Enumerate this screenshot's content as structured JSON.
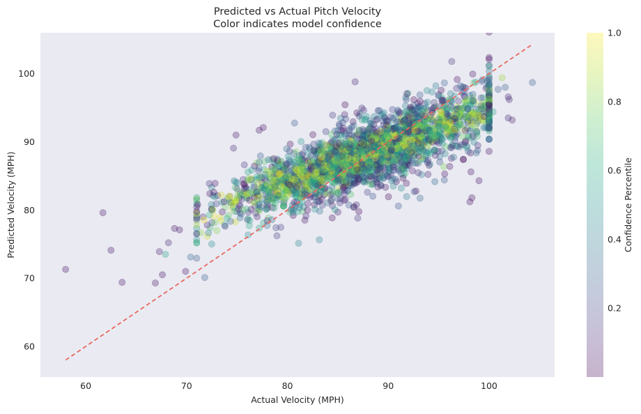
{
  "chart_data": {
    "type": "scatter",
    "title_line1": "Predicted vs Actual Pitch Velocity",
    "title_line2": "Color indicates model confidence",
    "xlabel": "Actual Velocity (MPH)",
    "ylabel": "Predicted Velocity (MPH)",
    "xlim": [
      55.5,
      106.5
    ],
    "ylim": [
      55.5,
      106.0
    ],
    "xticks": [
      60,
      70,
      80,
      90,
      100
    ],
    "yticks": [
      60,
      70,
      80,
      90,
      100
    ],
    "grid": false,
    "background": "#eaeaf2",
    "reference_line": {
      "style": "dashed",
      "color": "#e8685e",
      "x": [
        58.0,
        104.3
      ],
      "y": [
        58.0,
        104.3
      ]
    },
    "colorbar": {
      "label": "Confidence Percentile",
      "range": [
        0,
        1
      ],
      "ticks": [
        0.2,
        0.4,
        0.6,
        0.8,
        1.0
      ],
      "tick_labels": [
        "0.2",
        "0.4",
        "0.6",
        "0.8",
        "1.0"
      ],
      "colormap": "viridis",
      "alpha": 0.3
    },
    "point_alpha": 0.3,
    "point_cloud": {
      "count": 2600,
      "x_mean": 88,
      "x_sd": 6.8,
      "x_range": [
        58,
        104.3
      ],
      "slope": 0.55,
      "intercept_at_x": 88,
      "intercept_value": 88.3,
      "residual_sd_low_confidence": 3.6,
      "residual_sd_high_confidence": 1.2
    },
    "outliers": [
      {
        "x": 58.0,
        "y": 71.3,
        "c": 0.05
      },
      {
        "x": 61.7,
        "y": 79.6,
        "c": 0.05
      },
      {
        "x": 62.5,
        "y": 74.1,
        "c": 0.05
      },
      {
        "x": 63.6,
        "y": 69.4,
        "c": 0.05
      },
      {
        "x": 66.9,
        "y": 69.3,
        "c": 0.05
      },
      {
        "x": 67.3,
        "y": 73.9,
        "c": 0.08
      },
      {
        "x": 67.6,
        "y": 70.5,
        "c": 0.05
      },
      {
        "x": 67.9,
        "y": 73.5,
        "c": 0.55
      },
      {
        "x": 68.2,
        "y": 75.2,
        "c": 0.1
      },
      {
        "x": 68.8,
        "y": 77.3,
        "c": 0.05
      },
      {
        "x": 69.3,
        "y": 77.1,
        "c": 0.05
      },
      {
        "x": 69.9,
        "y": 71.0,
        "c": 0.05
      },
      {
        "x": 70.4,
        "y": 73.1,
        "c": 0.35
      },
      {
        "x": 71.8,
        "y": 70.1,
        "c": 0.3
      },
      {
        "x": 71.1,
        "y": 80.8,
        "c": 0.05
      },
      {
        "x": 72.3,
        "y": 82.4,
        "c": 0.05
      },
      {
        "x": 72.7,
        "y": 82.6,
        "c": 0.05
      },
      {
        "x": 74.9,
        "y": 91.0,
        "c": 0.05
      },
      {
        "x": 77.2,
        "y": 91.7,
        "c": 0.05
      },
      {
        "x": 77.6,
        "y": 92.1,
        "c": 0.05
      },
      {
        "x": 98.1,
        "y": 81.2,
        "c": 0.05
      },
      {
        "x": 98.3,
        "y": 81.8,
        "c": 0.05
      },
      {
        "x": 99.0,
        "y": 84.3,
        "c": 0.05
      },
      {
        "x": 98.2,
        "y": 85.6,
        "c": 0.05
      },
      {
        "x": 100.9,
        "y": 97.7,
        "c": 0.3
      },
      {
        "x": 101.3,
        "y": 99.4,
        "c": 0.85
      },
      {
        "x": 101.6,
        "y": 98.0,
        "c": 0.3
      },
      {
        "x": 101.9,
        "y": 96.6,
        "c": 0.1
      },
      {
        "x": 101.9,
        "y": 93.5,
        "c": 0.1
      },
      {
        "x": 102.3,
        "y": 93.2,
        "c": 0.1
      },
      {
        "x": 102.0,
        "y": 96.2,
        "c": 0.1
      },
      {
        "x": 104.3,
        "y": 98.7,
        "c": 0.3
      },
      {
        "x": 100.0,
        "y": 95.5,
        "c": 0.05
      },
      {
        "x": 99.5,
        "y": 93.7,
        "c": 0.05
      },
      {
        "x": 100.4,
        "y": 94.4,
        "c": 0.6
      },
      {
        "x": 96.1,
        "y": 86.4,
        "c": 0.05
      },
      {
        "x": 95.6,
        "y": 85.3,
        "c": 0.05
      }
    ]
  }
}
